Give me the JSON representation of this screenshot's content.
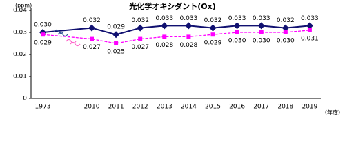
{
  "chart_data": {
    "type": "line",
    "title": "光化学オキシダント(Ox)",
    "y_label": "(ppm)",
    "x_label": "（年度）",
    "categories": [
      "1973",
      "2010",
      "2011",
      "2012",
      "2013",
      "2014",
      "2015",
      "2016",
      "2017",
      "2018",
      "2019"
    ],
    "series": [
      {
        "color": "#101070",
        "marker": "diamond",
        "dashed": false,
        "label_position": "above",
        "values": [
          0.03,
          0.032,
          0.029,
          0.032,
          0.033,
          0.033,
          0.032,
          0.033,
          0.033,
          0.032,
          0.033
        ],
        "value_labels": [
          "0.030",
          "0.032",
          "0.029",
          "0.032",
          "0.033",
          "0.033",
          "0.032",
          "0.033",
          "0.033",
          "0.032",
          "0.033"
        ]
      },
      {
        "color": "#ff00ff",
        "marker": "square",
        "dashed": true,
        "label_position": "below",
        "values": [
          0.029,
          0.027,
          0.025,
          0.027,
          0.028,
          0.028,
          0.029,
          0.03,
          0.03,
          0.03,
          0.031
        ],
        "value_labels": [
          "0.029",
          "0.027",
          "0.025",
          "0.027",
          "0.028",
          "0.028",
          "0.029",
          "0.030",
          "0.030",
          "0.030",
          "0.031"
        ]
      }
    ],
    "ylim": [
      0,
      0.04
    ],
    "yticks": [
      0,
      0.01,
      0.02,
      0.03,
      0.04
    ],
    "grid": false
  }
}
